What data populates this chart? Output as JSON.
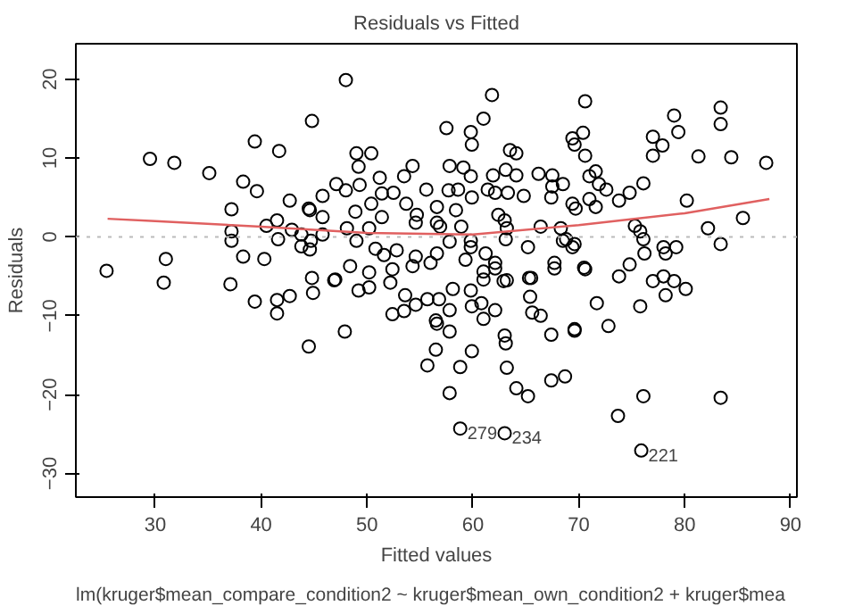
{
  "chart_data": {
    "type": "scatter",
    "title": "Residuals vs Fitted",
    "xlabel": "Fitted values",
    "ylabel": "Residuals",
    "xlim": [
      22.5,
      90.6
    ],
    "ylim": [
      -33,
      24.5
    ],
    "xticks": [
      30,
      40,
      50,
      60,
      70,
      80,
      90
    ],
    "yticks": [
      -30,
      -20,
      -10,
      0,
      10,
      20
    ],
    "grid": false,
    "series": [
      {
        "marker": "circle",
        "color": "#000000",
        "x": [
          25.4,
          29.5,
          31.8,
          35.1,
          38.3,
          39.4,
          41.7,
          44.8,
          39.6,
          37.2,
          37.2,
          37.2,
          38.3,
          40.3,
          41.5,
          40.5,
          41.6,
          42.7,
          42.9,
          43.8,
          44.6,
          43.8,
          44.6,
          31,
          30.8,
          37.1,
          44.8,
          39.4,
          41.5,
          41.5,
          42.7,
          44.9,
          44.5,
          48,
          61.8,
          61,
          57.5,
          59.8,
          59.9,
          63.5,
          64.1,
          69.4,
          69.6,
          49,
          50.4,
          49.2,
          54.3,
          53.5,
          57.8,
          59.1,
          59.8,
          61.9,
          63.1,
          64.1,
          66.2,
          67.5,
          67.5,
          68.5,
          47.1,
          48,
          49.3,
          51.2,
          51.4,
          52.5,
          55.6,
          57.7,
          58.6,
          59.9,
          61.4,
          62.1,
          63.3,
          64.8,
          67.4,
          69.7,
          44.5,
          45.8,
          50.4,
          53.7,
          56.6,
          58.4,
          54.7,
          54.6,
          56.6,
          56.9,
          58.9,
          51.4,
          48.9,
          45.8,
          48.1,
          50.2,
          62.4,
          63,
          63.2,
          66.4,
          68.3,
          44.7,
          45.8,
          49,
          50.8,
          51.6,
          52.8,
          54.6,
          56.6,
          57.8,
          59.8,
          59.8,
          61.2,
          63.1,
          65.2,
          67.7,
          68.5,
          69.4,
          47,
          48.4,
          50.2,
          52.4,
          54.3,
          56,
          59.3,
          61,
          62.1,
          62.9,
          65.5,
          46.9,
          49.2,
          50.2,
          47.9,
          52.2,
          52.4,
          53.5,
          53.6,
          54.6,
          55.7,
          56.8,
          56.5,
          56.6,
          57.8,
          58.1,
          57.8,
          56.5,
          55.7,
          57.8,
          58.8,
          59.9,
          59.8,
          59.9,
          61,
          60.8,
          61,
          62.1,
          62.1,
          63.2,
          63,
          63.1,
          63.2,
          64.1,
          65.2,
          65.3,
          65.4,
          65.6,
          66.4,
          67.4,
          67.4,
          68.7,
          67.7,
          69.6,
          58.8,
          63,
          70.6,
          70.4,
          70.6,
          71,
          71.6,
          71.9,
          72.6,
          71,
          71.6,
          69.4,
          73.8,
          74.8,
          76.1,
          77,
          77.9,
          77,
          79,
          79.4,
          81.3,
          83.4,
          83.4,
          84.4,
          87.7,
          80.2,
          85.5,
          82.2,
          83.4,
          75.3,
          75.8,
          76.1,
          76.2,
          74.8,
          73.8,
          78,
          78.2,
          79.2,
          77,
          78,
          79,
          68.8,
          69.6,
          70.5,
          70.6,
          80.1,
          78.2,
          71.7,
          75.8,
          69.6,
          72.8,
          76.1,
          83.4,
          73.7,
          75.9
        ],
        "values": [
          -4.3,
          9.9,
          9.4,
          8.1,
          7,
          12.1,
          10.9,
          14.7,
          5.8,
          3.5,
          0.7,
          -0.5,
          -2.5,
          -2.8,
          2.1,
          1.4,
          -0.3,
          4.6,
          0.9,
          0.3,
          3.4,
          -1.2,
          -1.6,
          -2.8,
          -5.8,
          -6,
          -5.2,
          -8.2,
          -8,
          -9.7,
          -7.5,
          -7.1,
          -13.9,
          19.9,
          18,
          15,
          13.8,
          13.3,
          11.7,
          11,
          10.6,
          12.5,
          11.7,
          10.6,
          10.6,
          8.9,
          9,
          7.7,
          9,
          8.8,
          7.7,
          7.8,
          8.5,
          7.8,
          8,
          7.8,
          6.4,
          6.7,
          6.7,
          5.9,
          6.6,
          7.5,
          5.5,
          5.6,
          6,
          5.9,
          6,
          5,
          6,
          5.6,
          5.6,
          5.2,
          5,
          3.6,
          3.6,
          5.2,
          4.2,
          4.2,
          3.8,
          3.4,
          2.8,
          1.8,
          1.8,
          1.3,
          1.3,
          2.5,
          3.2,
          2.5,
          1.1,
          1.1,
          2.8,
          2.1,
          1.1,
          1.3,
          1.1,
          -0.5,
          0.3,
          -0.5,
          -1.5,
          -2.3,
          -1.7,
          -2.5,
          -2.1,
          -0.6,
          -0.5,
          -1.3,
          -2.1,
          -0.3,
          -1.3,
          -3.3,
          -0.5,
          -1.3,
          -5.4,
          -3.7,
          -4.5,
          -4.1,
          -3.7,
          -3.3,
          -2.9,
          -4.4,
          -3.3,
          -5.6,
          -5.2,
          -5.5,
          -6.8,
          -6.4,
          -12,
          -5.8,
          -9.8,
          -9.4,
          -7.4,
          -8.6,
          -7.9,
          -7.9,
          -10.6,
          -11,
          -9.3,
          -6.6,
          -12,
          -14.3,
          -16.3,
          -19.8,
          -16.5,
          -14.5,
          -6.8,
          -8.8,
          -5.4,
          -8.4,
          -10.4,
          -9.3,
          -4,
          -5.5,
          -12.5,
          -13.5,
          -16.6,
          -19.2,
          -20.2,
          -5.2,
          -7.6,
          -9.6,
          -10,
          -12.4,
          -18.2,
          -17.7,
          -4,
          -11.9,
          -24.3,
          -24.9,
          17.2,
          13.2,
          10.3,
          7.7,
          8.3,
          6.7,
          6,
          4.8,
          3.8,
          4.2,
          4.6,
          5.6,
          6.8,
          12.7,
          11.6,
          10.3,
          15.4,
          13.3,
          10.2,
          16.4,
          14.3,
          10.1,
          9.4,
          4.6,
          2.4,
          1.1,
          -0.9,
          1.4,
          0.7,
          -0.3,
          -2.1,
          -3.5,
          -5,
          -1.3,
          -2.1,
          -1.3,
          -5.6,
          -5,
          -5.6,
          -0.3,
          -0.9,
          -3.9,
          -4.1,
          -6.6,
          -7.4,
          -8.4,
          -8.8,
          -11.7,
          -11.3,
          -20.2,
          -20.4,
          -22.7,
          -27.1
        ]
      },
      {
        "type": "line",
        "color": "#e06060",
        "x": [
          25.5,
          30,
          40,
          50,
          60,
          70,
          80,
          88
        ],
        "values": [
          2.3,
          2,
          1.3,
          0.5,
          0.3,
          1.5,
          3,
          4.8
        ]
      }
    ],
    "ref_lines": [
      {
        "axis": "y",
        "value": 0,
        "color": "#bbbbbb",
        "line_style": "dotted"
      }
    ],
    "annotations": [
      {
        "text": "279",
        "x": 58.8,
        "y": -24.3
      },
      {
        "text": "234",
        "x": 63,
        "y": -24.9
      },
      {
        "text": "221",
        "x": 75.9,
        "y": -27.1
      },
      "lm(kruger$mean_compare_condition2 ~ kruger$mean_own_condition2 + kruger$mea"
    ]
  }
}
